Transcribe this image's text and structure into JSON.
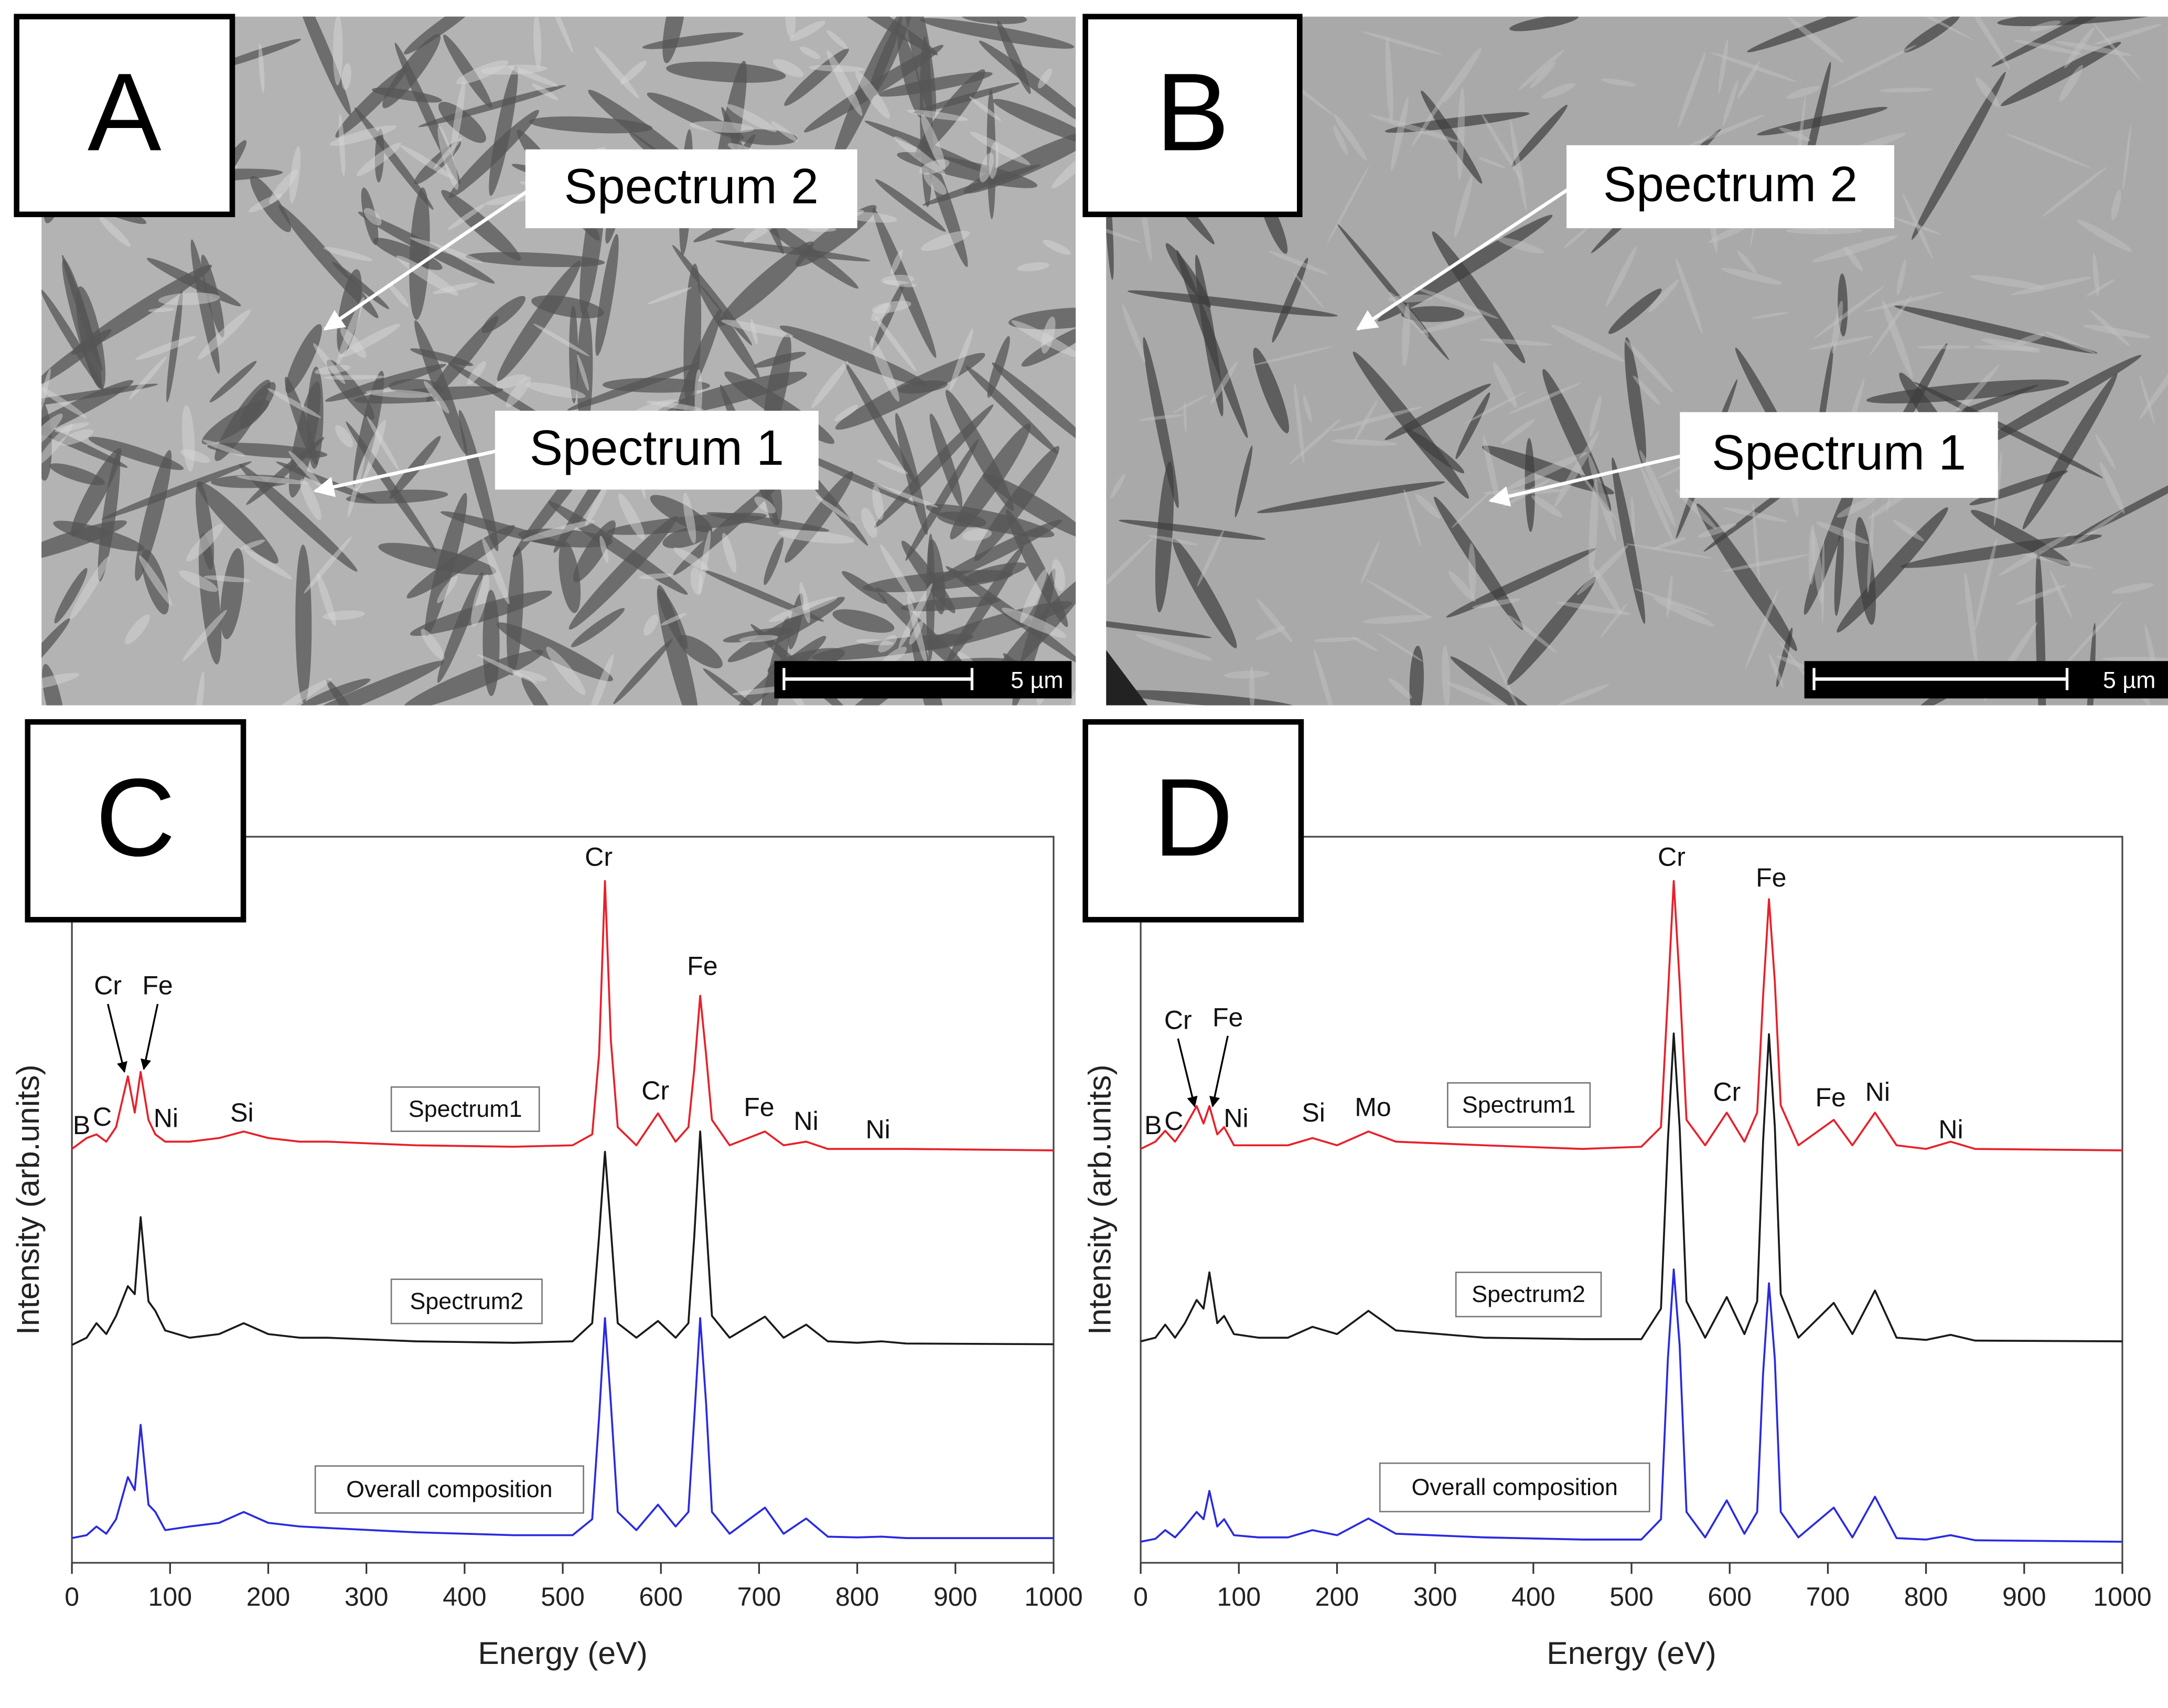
{
  "panels": [
    {
      "label": "A",
      "callouts": [
        "Spectrum 2",
        "Spectrum 1"
      ],
      "scale_bar": "5 µm"
    },
    {
      "label": "B",
      "callouts": [
        "Spectrum 2",
        "Spectrum 1"
      ],
      "scale_bar": "5 µm"
    }
  ],
  "chart_data": [
    {
      "type": "line",
      "label": "C",
      "x_label": "Energy (eV)",
      "y_label": "Intensity (arb.units)",
      "xlim": [
        0,
        1000
      ],
      "xticks": [
        0,
        100,
        200,
        300,
        400,
        500,
        600,
        700,
        800,
        900,
        1000
      ],
      "ylim": [
        0,
        100
      ],
      "x": [
        0,
        15,
        25,
        35,
        45,
        57,
        64,
        70,
        78,
        85,
        95,
        120,
        150,
        175,
        200,
        232,
        260,
        350,
        450,
        510,
        530,
        537,
        543,
        549,
        556,
        575,
        597,
        615,
        628,
        634,
        640,
        646,
        652,
        670,
        706,
        725,
        748,
        770,
        800,
        825,
        850,
        1000
      ],
      "series": [
        {
          "name": "Spectrum1",
          "color": "#e8202a",
          "values": [
            57,
            58.5,
            59,
            58,
            60,
            67,
            62,
            67.6,
            61,
            59,
            58,
            58,
            58.5,
            59.4,
            58.5,
            58,
            58,
            57.5,
            57.3,
            57.5,
            59,
            70,
            93.9,
            72,
            60,
            57.5,
            61.9,
            58,
            60,
            68,
            78.1,
            70,
            61,
            57.5,
            59.4,
            57.5,
            58,
            57,
            57,
            57,
            57,
            56.8
          ]
        },
        {
          "name": "Spectrum2",
          "color": "#1a1a1a",
          "values": [
            30,
            31,
            33,
            31.5,
            34,
            38.1,
            37,
            47.6,
            36,
            34.7,
            32,
            31,
            31.5,
            33,
            31.5,
            31,
            31,
            30.5,
            30.3,
            30.5,
            33,
            45,
            56.6,
            46,
            33,
            31,
            33.3,
            31,
            33,
            45,
            59.4,
            47,
            34,
            31,
            33.9,
            31,
            32.8,
            30.5,
            30.3,
            30.5,
            30.2,
            30.1
          ]
        },
        {
          "name": "Overall composition",
          "color": "#2a2ae0",
          "values": [
            3.4,
            3.8,
            5,
            4,
            6,
            11.8,
            10,
            19,
            8,
            7,
            4.5,
            5,
            5.5,
            7,
            5.5,
            5,
            4.8,
            4.2,
            3.8,
            3.8,
            6,
            20,
            33.7,
            22,
            7,
            4.5,
            8,
            5,
            7,
            20,
            33.7,
            22,
            7,
            4,
            7.6,
            4,
            6.1,
            3.6,
            3.5,
            3.6,
            3.4,
            3.4
          ]
        }
      ],
      "annotations": [
        "Cr",
        "Fe",
        "B",
        "C",
        "Ni",
        "Si",
        "Cr",
        "Fe",
        "Cr",
        "Fe",
        "Ni",
        "Ni"
      ]
    },
    {
      "type": "line",
      "label": "D",
      "x_label": "Energy (eV)",
      "y_label": "Intensity (arb.units)",
      "xlim": [
        0,
        1000
      ],
      "xticks": [
        0,
        100,
        200,
        300,
        400,
        500,
        600,
        700,
        800,
        900,
        1000
      ],
      "ylim": [
        0,
        100
      ],
      "x": [
        0,
        15,
        25,
        35,
        45,
        57,
        64,
        70,
        78,
        85,
        95,
        120,
        150,
        175,
        200,
        232,
        260,
        350,
        450,
        510,
        530,
        537,
        543,
        549,
        556,
        575,
        597,
        615,
        628,
        634,
        640,
        646,
        652,
        670,
        706,
        725,
        748,
        770,
        800,
        825,
        850,
        1000
      ],
      "series": [
        {
          "name": "Spectrum1",
          "color": "#e8202a",
          "values": [
            57,
            58,
            59.5,
            58,
            60,
            62.9,
            60.5,
            62.9,
            59,
            60,
            57.5,
            57.5,
            57.5,
            58.5,
            57.5,
            59.4,
            58,
            57.5,
            57,
            57.3,
            60,
            78,
            93.9,
            80,
            61,
            57.5,
            62,
            58,
            62,
            78,
            91.4,
            80,
            63,
            57.5,
            61,
            57.5,
            62,
            57.5,
            57,
            58,
            57,
            56.8
          ]
        },
        {
          "name": "Spectrum2",
          "color": "#1a1a1a",
          "values": [
            30.5,
            31,
            32.8,
            31,
            33,
            36.2,
            35,
            40,
            33,
            34,
            31.5,
            31,
            31,
            32.5,
            31.5,
            34.7,
            32,
            31,
            30.8,
            30.8,
            35,
            58,
            72.9,
            60,
            36,
            31,
            36.6,
            31.5,
            36,
            58,
            72.8,
            60,
            37,
            31,
            35.8,
            31.5,
            37.5,
            31,
            30.7,
            31.4,
            30.6,
            30.5
          ]
        },
        {
          "name": "Overall composition",
          "color": "#2a2ae0",
          "values": [
            2.9,
            3.3,
            4.5,
            3.5,
            5,
            7,
            6,
            9.9,
            5,
            6,
            3.8,
            3.5,
            3.5,
            4.5,
            3.8,
            6.1,
            4,
            3.5,
            3.2,
            3.2,
            6,
            28,
            40.4,
            30,
            7,
            3.5,
            8.6,
            4,
            7,
            26,
            38.5,
            28,
            7,
            3.5,
            7.6,
            3.5,
            9.1,
            3.4,
            3.2,
            3.8,
            3.1,
            2.9
          ]
        }
      ],
      "annotations": [
        "Cr",
        "Fe",
        "B",
        "C",
        "Ni",
        "Si",
        "Mo",
        "Cr",
        "Fe",
        "Cr",
        "Fe",
        "Ni",
        "Ni"
      ]
    }
  ]
}
